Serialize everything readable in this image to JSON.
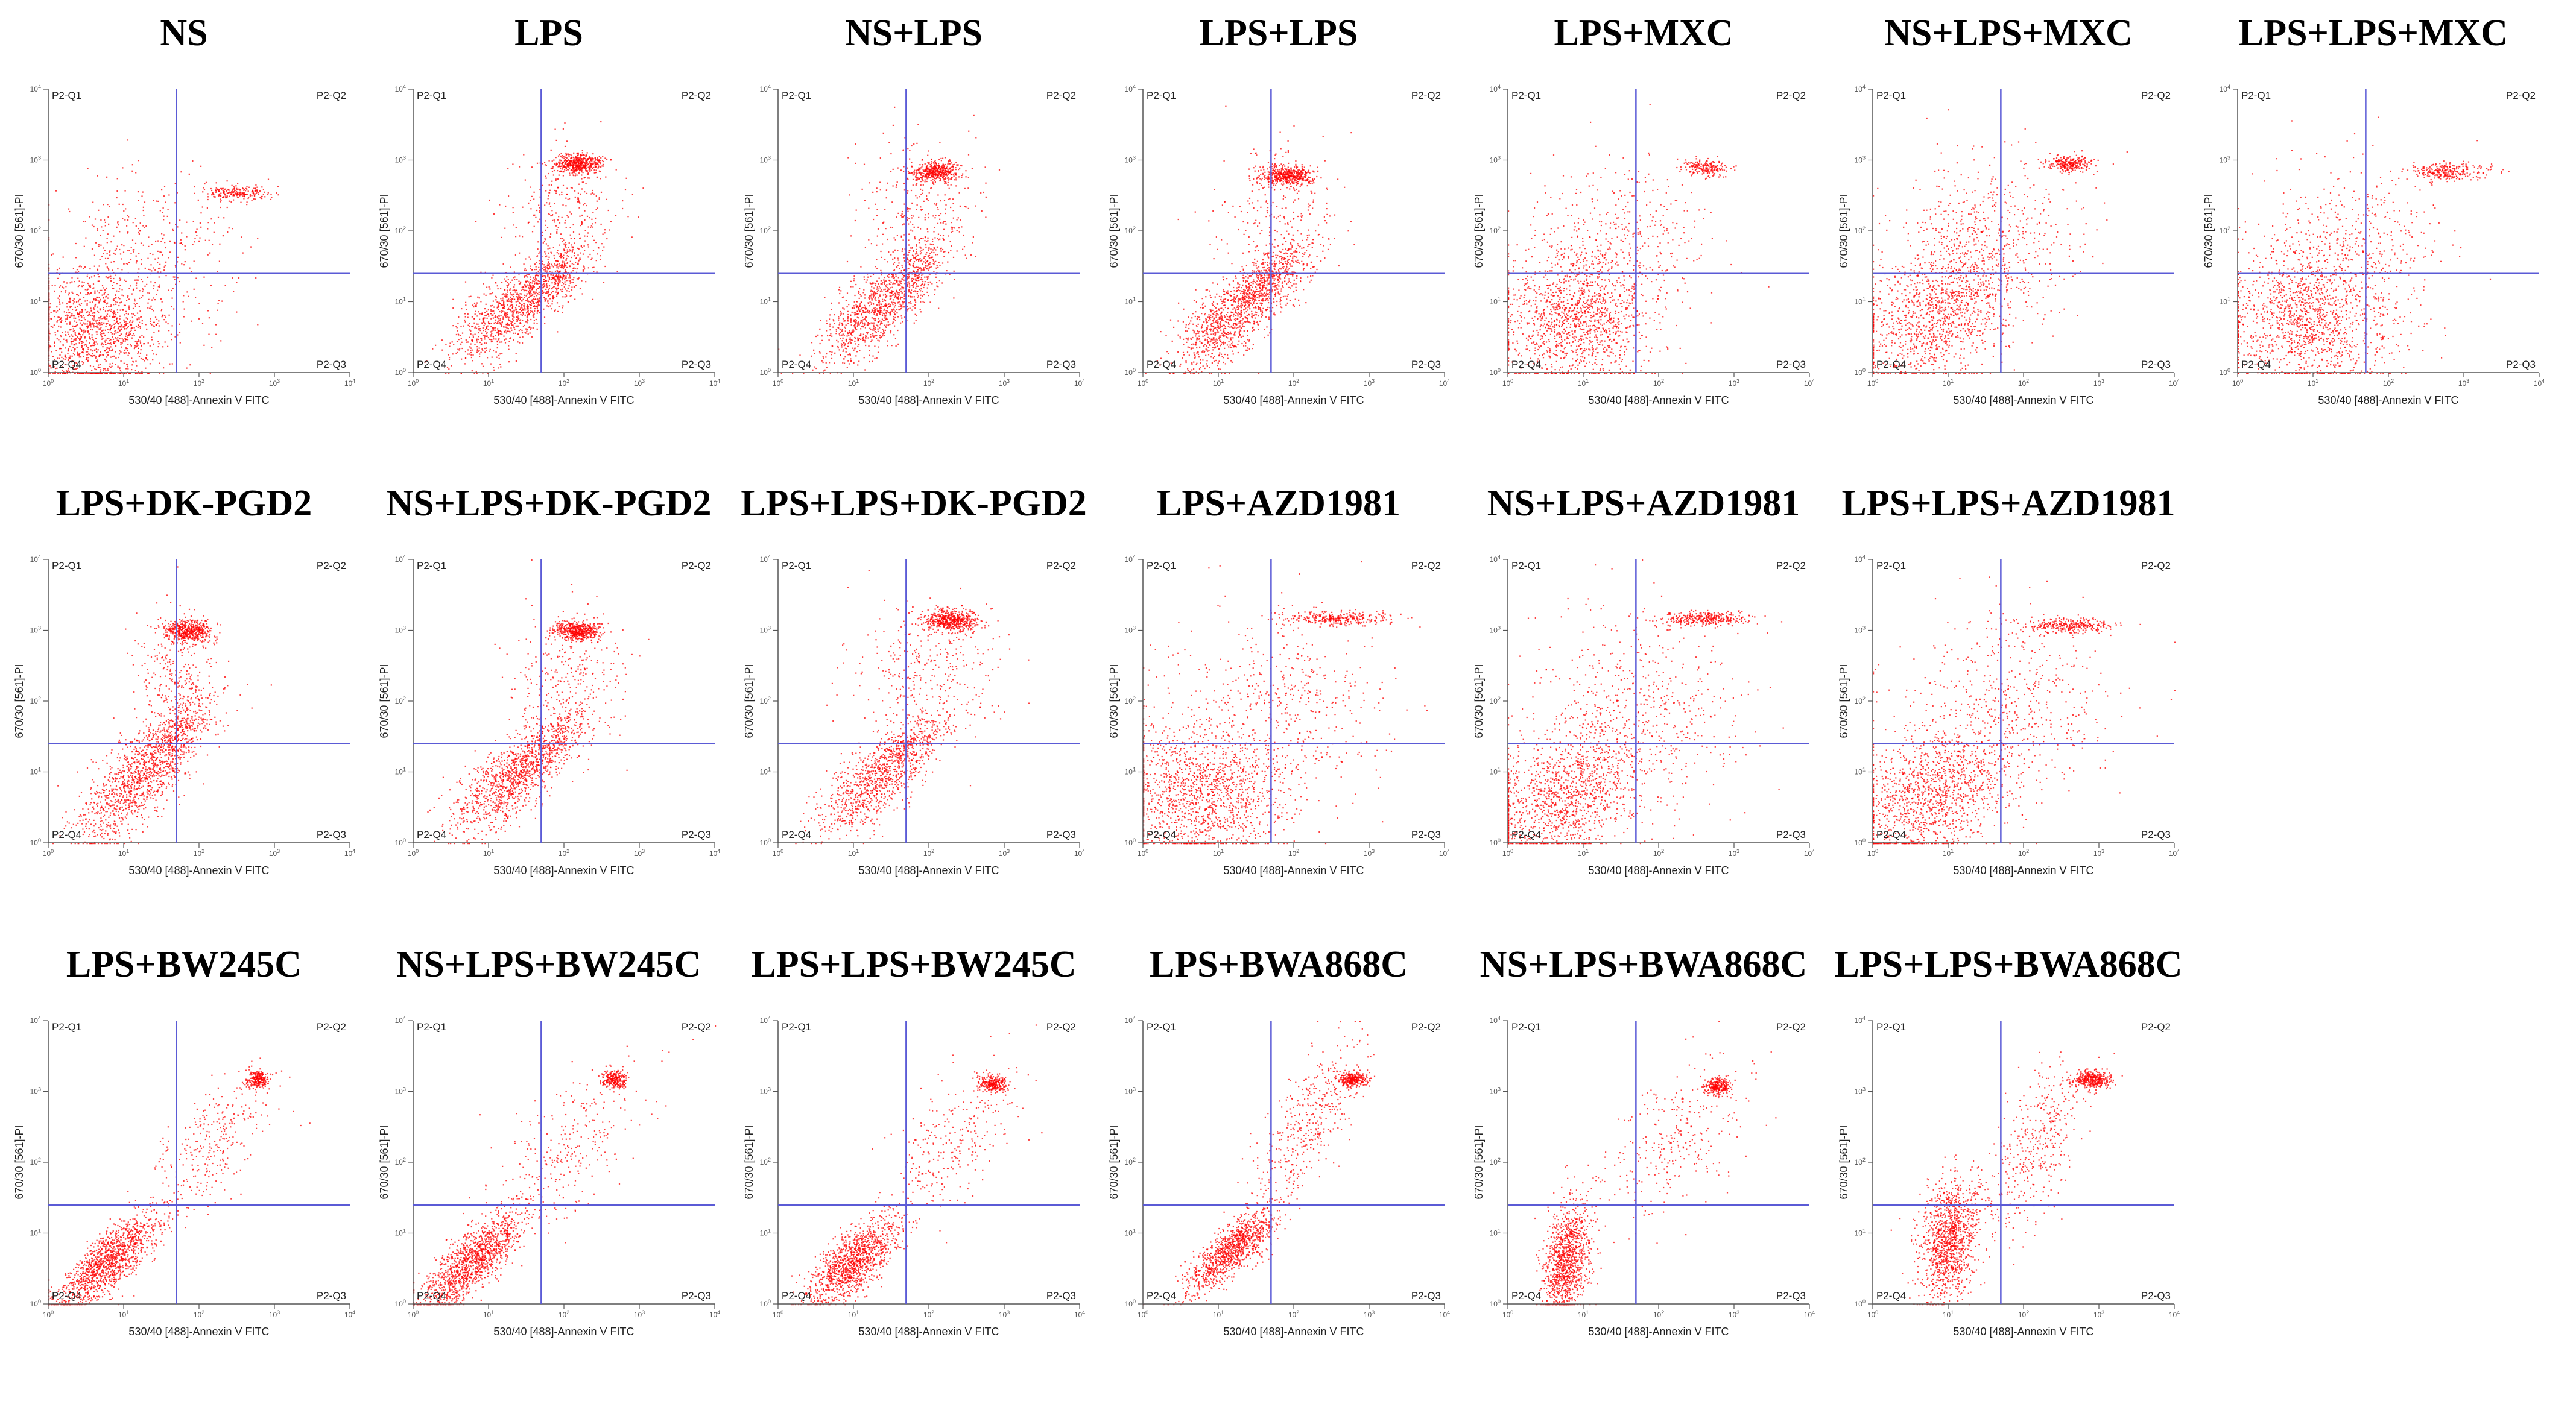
{
  "figure": {
    "rows": [
      [
        "NS",
        "LPS",
        "NS+LPS",
        "LPS+LPS",
        "LPS+MXC",
        "NS+LPS+MXC",
        "LPS+LPS+MXC"
      ],
      [
        "LPS+DK-PGD2",
        "NS+LPS+DK-PGD2",
        "LPS+LPS+DK-PGD2",
        "LPS+AZD1981",
        "NS+LPS+AZD1981",
        "LPS+LPS+AZD1981"
      ],
      [
        "LPS+BW245C",
        "NS+LPS+BW245C",
        "LPS+LPS+BW245C",
        "LPS+BWA868C",
        "NS+LPS+BWA868C",
        "LPS+LPS+BWA868C"
      ]
    ]
  },
  "colors": {
    "dots": "#ff0000",
    "gate": "#5b5bd6",
    "axis": "#555555",
    "background": "#ffffff"
  },
  "labels": {
    "xlabel": "530/40 [488]-Annexin V FITC",
    "ylabel": "670/30 [561]-PI",
    "quadrants": {
      "q1": "P2-Q1",
      "q2": "P2-Q2",
      "q3": "P2-Q3",
      "q4": "P2-Q4"
    }
  },
  "chart_data": [
    {
      "type": "scatter",
      "title": "NS",
      "xlabel": "530/40 [488]-Annexin V FITC",
      "ylabel": "670/30 [561]-PI",
      "scale": "log",
      "xlim": [
        1,
        10000
      ],
      "ylim": [
        1,
        10000
      ],
      "gate": {
        "x": 50,
        "y": 25
      },
      "populations": [
        {
          "cx": 4,
          "cy": 4,
          "sx": 0.45,
          "sy": 0.45,
          "n": 1300
        },
        {
          "cx": 300,
          "cy": 350,
          "sx": 0.22,
          "sy": 0.05,
          "n": 220
        },
        {
          "cx": 20,
          "cy": 40,
          "sx": 0.6,
          "sy": 0.6,
          "n": 400
        }
      ]
    },
    {
      "type": "scatter",
      "title": "LPS",
      "xlabel": "530/40 [488]-Annexin V FITC",
      "ylabel": "670/30 [561]-PI",
      "scale": "log",
      "xlim": [
        1,
        10000
      ],
      "ylim": [
        1,
        10000
      ],
      "gate": {
        "x": 50,
        "y": 25
      },
      "populations": [
        {
          "cx": 15,
          "cy": 6,
          "sx": 0.35,
          "sy": 0.35,
          "n": 700,
          "rho": 0.6
        },
        {
          "cx": 60,
          "cy": 20,
          "sx": 0.3,
          "sy": 0.3,
          "n": 600,
          "rho": 0.7
        },
        {
          "cx": 150,
          "cy": 900,
          "sx": 0.15,
          "sy": 0.07,
          "n": 500
        },
        {
          "cx": 100,
          "cy": 200,
          "sx": 0.4,
          "sy": 0.5,
          "n": 300
        }
      ]
    },
    {
      "type": "scatter",
      "title": "NS+LPS",
      "xlabel": "530/40 [488]-Annexin V FITC",
      "ylabel": "670/30 [561]-PI",
      "scale": "log",
      "xlim": [
        1,
        10000
      ],
      "ylim": [
        1,
        10000
      ],
      "gate": {
        "x": 50,
        "y": 25
      },
      "populations": [
        {
          "cx": 15,
          "cy": 6,
          "sx": 0.35,
          "sy": 0.35,
          "n": 700,
          "rho": 0.6
        },
        {
          "cx": 50,
          "cy": 22,
          "sx": 0.3,
          "sy": 0.3,
          "n": 500,
          "rho": 0.7
        },
        {
          "cx": 120,
          "cy": 700,
          "sx": 0.15,
          "sy": 0.07,
          "n": 450
        },
        {
          "cx": 80,
          "cy": 200,
          "sx": 0.4,
          "sy": 0.5,
          "n": 300
        }
      ]
    },
    {
      "type": "scatter",
      "title": "LPS+LPS",
      "xlabel": "530/40 [488]-Annexin V FITC",
      "ylabel": "670/30 [561]-PI",
      "scale": "log",
      "xlim": [
        1,
        10000
      ],
      "ylim": [
        1,
        10000
      ],
      "gate": {
        "x": 50,
        "y": 25
      },
      "populations": [
        {
          "cx": 12,
          "cy": 5,
          "sx": 0.35,
          "sy": 0.35,
          "n": 800,
          "rho": 0.6
        },
        {
          "cx": 45,
          "cy": 20,
          "sx": 0.3,
          "sy": 0.3,
          "n": 600,
          "rho": 0.7
        },
        {
          "cx": 80,
          "cy": 600,
          "sx": 0.18,
          "sy": 0.07,
          "n": 500
        },
        {
          "cx": 60,
          "cy": 150,
          "sx": 0.4,
          "sy": 0.5,
          "n": 250
        }
      ]
    },
    {
      "type": "scatter",
      "title": "LPS+MXC",
      "xlabel": "530/40 [488]-Annexin V FITC",
      "ylabel": "670/30 [561]-PI",
      "scale": "log",
      "xlim": [
        1,
        10000
      ],
      "ylim": [
        1,
        10000
      ],
      "gate": {
        "x": 50,
        "y": 25
      },
      "populations": [
        {
          "cx": 8,
          "cy": 6,
          "sx": 0.5,
          "sy": 0.5,
          "n": 1300
        },
        {
          "cx": 400,
          "cy": 800,
          "sx": 0.15,
          "sy": 0.06,
          "n": 200
        },
        {
          "cx": 30,
          "cy": 60,
          "sx": 0.6,
          "sy": 0.6,
          "n": 400
        }
      ]
    },
    {
      "type": "scatter",
      "title": "NS+LPS+MXC",
      "xlabel": "530/40 [488]-Annexin V FITC",
      "ylabel": "670/30 [561]-PI",
      "scale": "log",
      "xlim": [
        1,
        10000
      ],
      "ylim": [
        1,
        10000
      ],
      "gate": {
        "x": 50,
        "y": 25
      },
      "populations": [
        {
          "cx": 8,
          "cy": 8,
          "sx": 0.55,
          "sy": 0.55,
          "n": 1300,
          "rho": 0.4
        },
        {
          "cx": 400,
          "cy": 900,
          "sx": 0.15,
          "sy": 0.06,
          "n": 260
        },
        {
          "cx": 30,
          "cy": 80,
          "sx": 0.6,
          "sy": 0.6,
          "n": 450
        }
      ]
    },
    {
      "type": "scatter",
      "title": "LPS+LPS+MXC",
      "xlabel": "530/40 [488]-Annexin V FITC",
      "ylabel": "670/30 [561]-PI",
      "scale": "log",
      "xlim": [
        1,
        10000
      ],
      "ylim": [
        1,
        10000
      ],
      "gate": {
        "x": 50,
        "y": 25
      },
      "populations": [
        {
          "cx": 8,
          "cy": 6,
          "sx": 0.55,
          "sy": 0.5,
          "n": 1300
        },
        {
          "cx": 600,
          "cy": 700,
          "sx": 0.25,
          "sy": 0.06,
          "n": 280
        },
        {
          "cx": 30,
          "cy": 60,
          "sx": 0.6,
          "sy": 0.6,
          "n": 450
        }
      ]
    },
    {
      "type": "scatter",
      "title": "LPS+DK-PGD2",
      "xlabel": "530/40 [488]-Annexin V FITC",
      "ylabel": "670/30 [561]-PI",
      "scale": "log",
      "xlim": [
        1,
        10000
      ],
      "ylim": [
        1,
        10000
      ],
      "gate": {
        "x": 50,
        "y": 25
      },
      "populations": [
        {
          "cx": 12,
          "cy": 6,
          "sx": 0.35,
          "sy": 0.4,
          "n": 800,
          "rho": 0.6
        },
        {
          "cx": 40,
          "cy": 25,
          "sx": 0.3,
          "sy": 0.35,
          "n": 600,
          "rho": 0.7
        },
        {
          "cx": 70,
          "cy": 1000,
          "sx": 0.15,
          "sy": 0.08,
          "n": 500
        },
        {
          "cx": 50,
          "cy": 200,
          "sx": 0.3,
          "sy": 0.5,
          "n": 300
        }
      ]
    },
    {
      "type": "scatter",
      "title": "NS+LPS+DK-PGD2",
      "xlabel": "530/40 [488]-Annexin V FITC",
      "ylabel": "670/30 [561]-PI",
      "scale": "log",
      "xlim": [
        1,
        10000
      ],
      "ylim": [
        1,
        10000
      ],
      "gate": {
        "x": 50,
        "y": 25
      },
      "populations": [
        {
          "cx": 15,
          "cy": 6,
          "sx": 0.35,
          "sy": 0.35,
          "n": 700,
          "rho": 0.6
        },
        {
          "cx": 50,
          "cy": 20,
          "sx": 0.3,
          "sy": 0.3,
          "n": 600,
          "rho": 0.7
        },
        {
          "cx": 150,
          "cy": 1000,
          "sx": 0.15,
          "sy": 0.07,
          "n": 500
        },
        {
          "cx": 100,
          "cy": 200,
          "sx": 0.4,
          "sy": 0.5,
          "n": 300
        }
      ]
    },
    {
      "type": "scatter",
      "title": "LPS+LPS+DK-PGD2",
      "xlabel": "530/40 [488]-Annexin V FITC",
      "ylabel": "670/30 [561]-PI",
      "scale": "log",
      "xlim": [
        1,
        10000
      ],
      "ylim": [
        1,
        10000
      ],
      "gate": {
        "x": 50,
        "y": 25
      },
      "populations": [
        {
          "cx": 15,
          "cy": 6,
          "sx": 0.35,
          "sy": 0.35,
          "n": 600,
          "rho": 0.6
        },
        {
          "cx": 45,
          "cy": 18,
          "sx": 0.3,
          "sy": 0.3,
          "n": 500,
          "rho": 0.7
        },
        {
          "cx": 200,
          "cy": 1400,
          "sx": 0.18,
          "sy": 0.08,
          "n": 550
        },
        {
          "cx": 100,
          "cy": 250,
          "sx": 0.45,
          "sy": 0.5,
          "n": 350
        }
      ]
    },
    {
      "type": "scatter",
      "title": "LPS+AZD1981",
      "xlabel": "530/40 [488]-Annexin V FITC",
      "ylabel": "670/30 [561]-PI",
      "scale": "log",
      "xlim": [
        1,
        10000
      ],
      "ylim": [
        1,
        10000
      ],
      "gate": {
        "x": 50,
        "y": 25
      },
      "populations": [
        {
          "cx": 6,
          "cy": 5,
          "sx": 0.55,
          "sy": 0.5,
          "n": 1400
        },
        {
          "cx": 400,
          "cy": 1500,
          "sx": 0.35,
          "sy": 0.05,
          "n": 300
        },
        {
          "cx": 60,
          "cy": 100,
          "sx": 0.7,
          "sy": 0.7,
          "n": 500
        }
      ]
    },
    {
      "type": "scatter",
      "title": "NS+LPS+AZD1981",
      "xlabel": "530/40 [488]-Annexin V FITC",
      "ylabel": "670/30 [561]-PI",
      "scale": "log",
      "xlim": [
        1,
        10000
      ],
      "ylim": [
        1,
        10000
      ],
      "gate": {
        "x": 50,
        "y": 25
      },
      "populations": [
        {
          "cx": 6,
          "cy": 5,
          "sx": 0.55,
          "sy": 0.5,
          "n": 1300,
          "rho": 0.4
        },
        {
          "cx": 400,
          "cy": 1500,
          "sx": 0.3,
          "sy": 0.05,
          "n": 320
        },
        {
          "cx": 60,
          "cy": 100,
          "sx": 0.7,
          "sy": 0.7,
          "n": 500
        }
      ]
    },
    {
      "type": "scatter",
      "title": "LPS+LPS+AZD1981",
      "xlabel": "530/40 [488]-Annexin V FITC",
      "ylabel": "670/30 [561]-PI",
      "scale": "log",
      "xlim": [
        1,
        10000
      ],
      "ylim": [
        1,
        10000
      ],
      "gate": {
        "x": 50,
        "y": 25
      },
      "populations": [
        {
          "cx": 6,
          "cy": 5,
          "sx": 0.55,
          "sy": 0.5,
          "n": 1300,
          "rho": 0.4
        },
        {
          "cx": 400,
          "cy": 1200,
          "sx": 0.3,
          "sy": 0.05,
          "n": 300
        },
        {
          "cx": 60,
          "cy": 100,
          "sx": 0.7,
          "sy": 0.7,
          "n": 500
        }
      ]
    },
    {
      "type": "scatter",
      "title": "LPS+BW245C",
      "xlabel": "530/40 [488]-Annexin V FITC",
      "ylabel": "670/30 [561]-PI",
      "scale": "log",
      "xlim": [
        1,
        10000
      ],
      "ylim": [
        1,
        10000
      ],
      "gate": {
        "x": 50,
        "y": 25
      },
      "populations": [
        {
          "cx": 6,
          "cy": 4,
          "sx": 0.35,
          "sy": 0.35,
          "n": 1300,
          "rho": 0.8
        },
        {
          "cx": 600,
          "cy": 1500,
          "sx": 0.08,
          "sy": 0.06,
          "n": 250
        },
        {
          "cx": 150,
          "cy": 200,
          "sx": 0.4,
          "sy": 0.5,
          "n": 300,
          "rho": 0.6
        }
      ]
    },
    {
      "type": "scatter",
      "title": "NS+LPS+BW245C",
      "xlabel": "530/40 [488]-Annexin V FITC",
      "ylabel": "670/30 [561]-PI",
      "scale": "log",
      "xlim": [
        1,
        10000
      ],
      "ylim": [
        1,
        10000
      ],
      "gate": {
        "x": 50,
        "y": 25
      },
      "populations": [
        {
          "cx": 6,
          "cy": 4,
          "sx": 0.35,
          "sy": 0.35,
          "n": 1300,
          "rho": 0.8
        },
        {
          "cx": 450,
          "cy": 1500,
          "sx": 0.08,
          "sy": 0.06,
          "n": 250
        },
        {
          "cx": 100,
          "cy": 150,
          "sx": 0.5,
          "sy": 0.6,
          "n": 300,
          "rho": 0.6
        }
      ]
    },
    {
      "type": "scatter",
      "title": "LPS+LPS+BW245C",
      "xlabel": "530/40 [488]-Annexin V FITC",
      "ylabel": "670/30 [561]-PI",
      "scale": "log",
      "xlim": [
        1,
        10000
      ],
      "ylim": [
        1,
        10000
      ],
      "gate": {
        "x": 50,
        "y": 25
      },
      "populations": [
        {
          "cx": 10,
          "cy": 4,
          "sx": 0.3,
          "sy": 0.3,
          "n": 1200,
          "rho": 0.7
        },
        {
          "cx": 700,
          "cy": 1300,
          "sx": 0.09,
          "sy": 0.06,
          "n": 250
        },
        {
          "cx": 200,
          "cy": 200,
          "sx": 0.45,
          "sy": 0.55,
          "n": 300,
          "rho": 0.6
        }
      ]
    },
    {
      "type": "scatter",
      "title": "LPS+BWA868C",
      "xlabel": "530/40 [488]-Annexin V FITC",
      "ylabel": "670/30 [561]-PI",
      "scale": "log",
      "xlim": [
        1,
        10000
      ],
      "ylim": [
        1,
        10000
      ],
      "gate": {
        "x": 50,
        "y": 25
      },
      "populations": [
        {
          "cx": 15,
          "cy": 6,
          "sx": 0.3,
          "sy": 0.3,
          "n": 1100,
          "rho": 0.8
        },
        {
          "cx": 600,
          "cy": 1500,
          "sx": 0.1,
          "sy": 0.05,
          "n": 300
        },
        {
          "cx": 150,
          "cy": 400,
          "sx": 0.35,
          "sy": 0.55,
          "n": 400,
          "rho": 0.7
        }
      ]
    },
    {
      "type": "scatter",
      "title": "NS+LPS+BWA868C",
      "xlabel": "530/40 [488]-Annexin V FITC",
      "ylabel": "670/30 [561]-PI",
      "scale": "log",
      "xlim": [
        1,
        10000
      ],
      "ylim": [
        1,
        10000
      ],
      "gate": {
        "x": 50,
        "y": 25
      },
      "populations": [
        {
          "cx": 6,
          "cy": 4,
          "sx": 0.15,
          "sy": 0.4,
          "n": 1100,
          "rho": 0.3
        },
        {
          "cx": 600,
          "cy": 1200,
          "sx": 0.09,
          "sy": 0.06,
          "n": 250
        },
        {
          "cx": 150,
          "cy": 200,
          "sx": 0.5,
          "sy": 0.55,
          "n": 300,
          "rho": 0.5
        }
      ]
    },
    {
      "type": "scatter",
      "title": "LPS+LPS+BWA868C",
      "xlabel": "530/40 [488]-Annexin V FITC",
      "ylabel": "670/30 [561]-PI",
      "scale": "log",
      "xlim": [
        1,
        10000
      ],
      "ylim": [
        1,
        10000
      ],
      "gate": {
        "x": 50,
        "y": 25
      },
      "populations": [
        {
          "cx": 10,
          "cy": 8,
          "sx": 0.2,
          "sy": 0.45,
          "n": 1200,
          "rho": 0.3
        },
        {
          "cx": 800,
          "cy": 1500,
          "sx": 0.12,
          "sy": 0.06,
          "n": 350
        },
        {
          "cx": 150,
          "cy": 200,
          "sx": 0.3,
          "sy": 0.6,
          "n": 400,
          "rho": 0.5
        }
      ]
    }
  ]
}
